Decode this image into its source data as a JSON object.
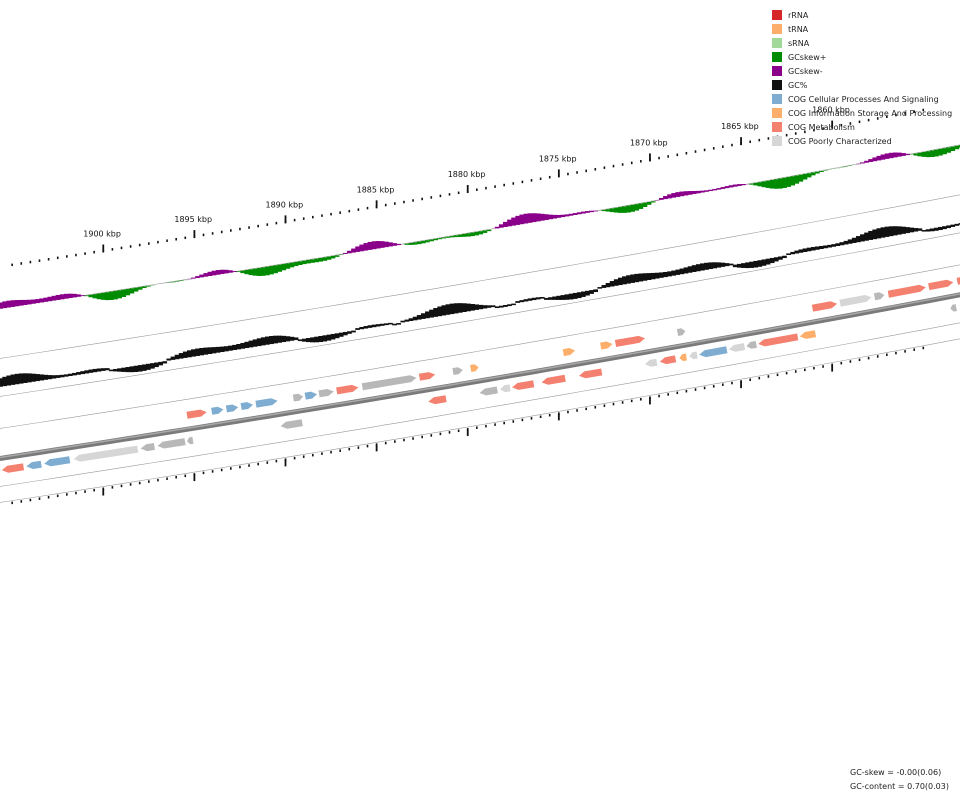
{
  "legend": [
    {
      "label": "rRNA",
      "color": "#d62728"
    },
    {
      "label": "tRNA",
      "color": "#fdae6b"
    },
    {
      "label": "sRNA",
      "color": "#a1d99b"
    },
    {
      "label": "GCskew+",
      "color": "#008b00"
    },
    {
      "label": "GCskew-",
      "color": "#8b008b"
    },
    {
      "label": "GC%",
      "color": "#111111"
    },
    {
      "label": "COG Cellular Processes And Signaling",
      "color": "#7eadd1"
    },
    {
      "label": "COG Information Storage And Processing",
      "color": "#fdae6b"
    },
    {
      "label": "COG Metabolism",
      "color": "#f4806f"
    },
    {
      "label": "COG Poorly Characterized",
      "color": "#d6d6d6"
    }
  ],
  "ruler": {
    "unit": "kbp",
    "major_ticks": [
      {
        "kbp": 1900,
        "label": "1900 kbp"
      },
      {
        "kbp": 1895,
        "label": "1895 kbp"
      },
      {
        "kbp": 1890,
        "label": "1890 kbp"
      },
      {
        "kbp": 1885,
        "label": "1885 kbp"
      },
      {
        "kbp": 1880,
        "label": "1880 kbp"
      },
      {
        "kbp": 1875,
        "label": "1875 kbp"
      },
      {
        "kbp": 1870,
        "label": "1870 kbp"
      },
      {
        "kbp": 1865,
        "label": "1865 kbp"
      },
      {
        "kbp": 1860,
        "label": "1860 kbp"
      }
    ]
  },
  "stats": {
    "gc_skew": "GC-skew = -0.00(0.06)",
    "gc_content": "GC-content = 0.70(0.03)"
  },
  "colors": {
    "cellular": "#7eadd1",
    "info": "#fdae6b",
    "metabolism": "#f4806f",
    "poorly": "#d6d6d6",
    "unknown": "#b8b8b8",
    "trna": "#fdae6b"
  },
  "genes_outer": [
    {
      "t": 0.2,
      "len": 0.02,
      "dir": 1,
      "cat": "metabolism"
    },
    {
      "t": 0.225,
      "len": 0.012,
      "dir": 1,
      "cat": "cellular"
    },
    {
      "t": 0.24,
      "len": 0.012,
      "dir": 1,
      "cat": "cellular"
    },
    {
      "t": 0.255,
      "len": 0.012,
      "dir": 1,
      "cat": "cellular"
    },
    {
      "t": 0.27,
      "len": 0.022,
      "dir": 1,
      "cat": "cellular"
    },
    {
      "t": 0.308,
      "len": 0.01,
      "dir": 1,
      "cat": "unknown"
    },
    {
      "t": 0.32,
      "len": 0.012,
      "dir": 1,
      "cat": "cellular"
    },
    {
      "t": 0.334,
      "len": 0.015,
      "dir": 1,
      "cat": "unknown"
    },
    {
      "t": 0.352,
      "len": 0.022,
      "dir": 1,
      "cat": "metabolism"
    },
    {
      "t": 0.378,
      "len": 0.055,
      "dir": 1,
      "cat": "unknown"
    },
    {
      "t": 0.436,
      "len": 0.016,
      "dir": 1,
      "cat": "metabolism"
    },
    {
      "t": 0.47,
      "len": 0.01,
      "dir": 1,
      "cat": "unknown"
    },
    {
      "t": 0.488,
      "len": 0.008,
      "dir": 1,
      "cat": "info"
    },
    {
      "t": 0.582,
      "len": 0.012,
      "dir": 1,
      "cat": "info"
    },
    {
      "t": 0.62,
      "len": 0.012,
      "dir": 1,
      "cat": "info"
    },
    {
      "t": 0.635,
      "len": 0.03,
      "dir": 1,
      "cat": "metabolism"
    },
    {
      "t": 0.698,
      "len": 0.008,
      "dir": 1,
      "cat": "unknown"
    },
    {
      "t": 0.835,
      "len": 0.025,
      "dir": 1,
      "cat": "metabolism"
    },
    {
      "t": 0.863,
      "len": 0.032,
      "dir": 1,
      "cat": "poorly"
    },
    {
      "t": 0.898,
      "len": 0.01,
      "dir": 1,
      "cat": "unknown"
    },
    {
      "t": 0.912,
      "len": 0.038,
      "dir": 1,
      "cat": "metabolism"
    },
    {
      "t": 0.953,
      "len": 0.025,
      "dir": 1,
      "cat": "metabolism"
    },
    {
      "t": 0.982,
      "len": 0.025,
      "dir": 1,
      "cat": "metabolism"
    }
  ],
  "genes_inner": [
    {
      "t": 0.012,
      "len": 0.022,
      "dir": -1,
      "cat": "metabolism"
    },
    {
      "t": 0.037,
      "len": 0.015,
      "dir": -1,
      "cat": "cellular"
    },
    {
      "t": 0.055,
      "len": 0.026,
      "dir": -1,
      "cat": "cellular"
    },
    {
      "t": 0.085,
      "len": 0.065,
      "dir": -1,
      "cat": "poorly"
    },
    {
      "t": 0.153,
      "len": 0.014,
      "dir": -1,
      "cat": "unknown"
    },
    {
      "t": 0.17,
      "len": 0.028,
      "dir": -1,
      "cat": "unknown"
    },
    {
      "t": 0.2,
      "len": 0.006,
      "dir": -1,
      "cat": "unknown"
    },
    {
      "t": 0.295,
      "len": 0.022,
      "dir": -1,
      "cat": "unknown"
    },
    {
      "t": 0.445,
      "len": 0.018,
      "dir": -1,
      "cat": "metabolism"
    },
    {
      "t": 0.497,
      "len": 0.018,
      "dir": -1,
      "cat": "unknown"
    },
    {
      "t": 0.518,
      "len": 0.01,
      "dir": -1,
      "cat": "poorly"
    },
    {
      "t": 0.53,
      "len": 0.022,
      "dir": -1,
      "cat": "metabolism"
    },
    {
      "t": 0.56,
      "len": 0.024,
      "dir": -1,
      "cat": "metabolism"
    },
    {
      "t": 0.598,
      "len": 0.023,
      "dir": -1,
      "cat": "metabolism"
    },
    {
      "t": 0.665,
      "len": 0.012,
      "dir": -1,
      "cat": "poorly"
    },
    {
      "t": 0.68,
      "len": 0.016,
      "dir": -1,
      "cat": "metabolism"
    },
    {
      "t": 0.7,
      "len": 0.007,
      "dir": -1,
      "cat": "info"
    },
    {
      "t": 0.71,
      "len": 0.008,
      "dir": -1,
      "cat": "poorly"
    },
    {
      "t": 0.72,
      "len": 0.028,
      "dir": -1,
      "cat": "cellular"
    },
    {
      "t": 0.75,
      "len": 0.016,
      "dir": -1,
      "cat": "poorly"
    },
    {
      "t": 0.768,
      "len": 0.01,
      "dir": -1,
      "cat": "unknown"
    },
    {
      "t": 0.78,
      "len": 0.04,
      "dir": -1,
      "cat": "metabolism"
    },
    {
      "t": 0.822,
      "len": 0.016,
      "dir": -1,
      "cat": "info"
    },
    {
      "t": 0.975,
      "len": 0.006,
      "dir": -1,
      "cat": "unknown"
    }
  ]
}
